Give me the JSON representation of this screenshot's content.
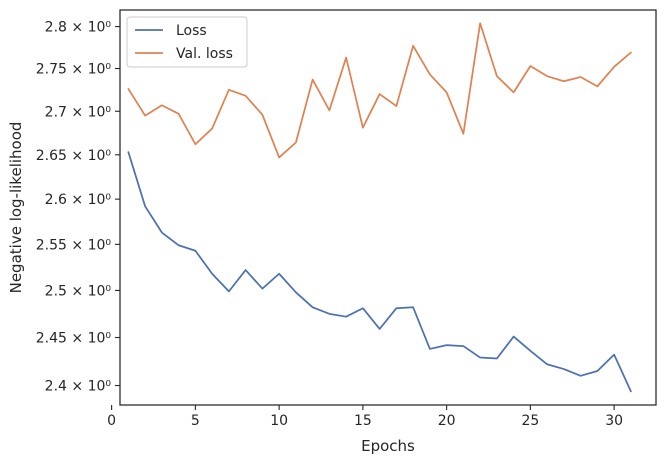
{
  "chart_data": {
    "type": "line",
    "xlabel": "Epochs",
    "ylabel": "Negative log-likelihood",
    "xlim": [
      0.5,
      32.5
    ],
    "ylim": [
      2.38,
      2.82
    ],
    "yscale": "log",
    "grid": false,
    "legend": "top-left",
    "x_ticks": [
      0,
      5,
      10,
      15,
      20,
      25,
      30
    ],
    "x_tick_labels": [
      "0",
      "5",
      "10",
      "15",
      "20",
      "25",
      "30"
    ],
    "y_ticks": [
      2.4,
      2.45,
      2.5,
      2.55,
      2.6,
      2.65,
      2.7,
      2.75,
      2.8
    ],
    "y_tick_labels": [
      "2.4 × 10⁰",
      "2.45 × 10⁰",
      "2.5 × 10⁰",
      "2.55 × 10⁰",
      "2.6 × 10⁰",
      "2.65 × 10⁰",
      "2.7 × 10⁰",
      "2.75 × 10⁰",
      "2.8 × 10⁰"
    ],
    "x": [
      1,
      2,
      3,
      4,
      5,
      6,
      7,
      8,
      9,
      10,
      11,
      12,
      13,
      14,
      15,
      16,
      17,
      18,
      19,
      20,
      21,
      22,
      23,
      24,
      25,
      26,
      27,
      28,
      29,
      30,
      31
    ],
    "series": [
      {
        "name": "Loss",
        "color": "#4c72b0",
        "values": [
          2.653,
          2.592,
          2.563,
          2.549,
          2.543,
          2.518,
          2.499,
          2.522,
          2.502,
          2.518,
          2.498,
          2.482,
          2.475,
          2.472,
          2.481,
          2.459,
          2.481,
          2.482,
          2.438,
          2.442,
          2.441,
          2.429,
          2.428,
          2.451,
          2.436,
          2.422,
          2.417,
          2.41,
          2.415,
          2.432,
          2.394
        ]
      },
      {
        "name": "Val. loss",
        "color": "#dd8452",
        "values": [
          2.726,
          2.695,
          2.707,
          2.697,
          2.662,
          2.68,
          2.725,
          2.718,
          2.696,
          2.647,
          2.664,
          2.737,
          2.701,
          2.763,
          2.681,
          2.72,
          2.706,
          2.777,
          2.743,
          2.722,
          2.674,
          2.804,
          2.741,
          2.722,
          2.753,
          2.741,
          2.735,
          2.74,
          2.729,
          2.752,
          2.769
        ]
      }
    ]
  }
}
